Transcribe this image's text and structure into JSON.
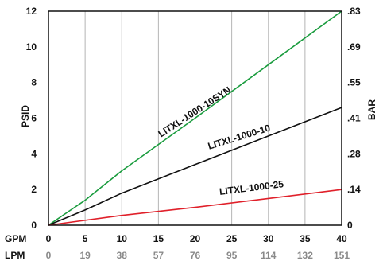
{
  "chart_data": {
    "type": "line",
    "title": "",
    "xlabel_primary": "GPM",
    "xlabel_secondary": "LPM",
    "ylabel_left": "PSID",
    "ylabel_right": "BAR",
    "xlim": [
      0,
      40
    ],
    "ylim": [
      0,
      12
    ],
    "grid": "vertical",
    "x_ticks": [
      "0",
      "5",
      "10",
      "15",
      "20",
      "25",
      "30",
      "35",
      "40"
    ],
    "x_ticks_secondary": [
      "0",
      "19",
      "38",
      "57",
      "76",
      "95",
      "114",
      "132",
      "151"
    ],
    "y_ticks_left": [
      "0",
      "2",
      "4",
      "6",
      "8",
      "10",
      "12"
    ],
    "y_ticks_right": [
      "0",
      ".14",
      ".28",
      ".41",
      ".55",
      ".69",
      ".83"
    ],
    "series": [
      {
        "name": "LITXL-1000-10SYN",
        "color": "#1a9c3e",
        "x": [
          0,
          5,
          10,
          20,
          30,
          40
        ],
        "y": [
          0,
          1.4,
          3.05,
          6.0,
          9.0,
          12.0
        ]
      },
      {
        "name": "LITXL-1000-10",
        "color": "#111111",
        "x": [
          0,
          5,
          10,
          20,
          30,
          40
        ],
        "y": [
          0,
          0.85,
          1.8,
          3.4,
          5.0,
          6.6
        ]
      },
      {
        "name": "LITXL-1000-25",
        "color": "#e0202a",
        "x": [
          0,
          10,
          20,
          30,
          40
        ],
        "y": [
          0,
          0.55,
          1.0,
          1.5,
          2.0
        ]
      }
    ]
  }
}
